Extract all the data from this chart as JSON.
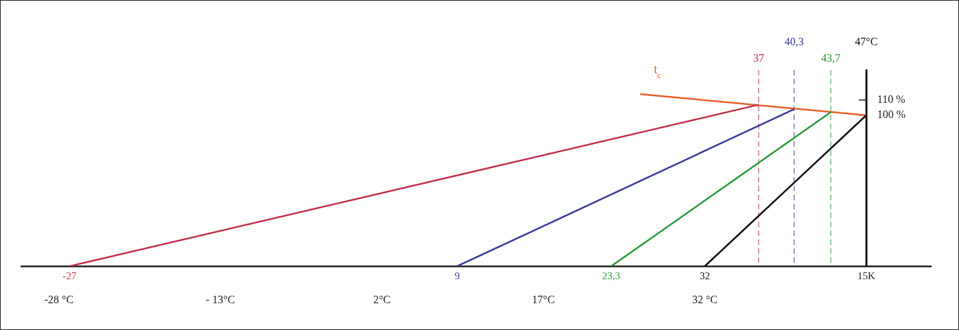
{
  "chart_data": {
    "type": "line",
    "series": [
      {
        "color": "#c0304a",
        "x": [
          -27,
          37
        ],
        "values": [
          0,
          107
        ]
      },
      {
        "color": "#3a3a9a",
        "x": [
          9,
          40.3
        ],
        "values": [
          0,
          104
        ]
      },
      {
        "color": "#2a9a3a",
        "x": [
          23.3,
          43.7
        ],
        "values": [
          0,
          102
        ]
      },
      {
        "color": "#111111",
        "x": [
          32,
          47
        ],
        "values": [
          0,
          100
        ]
      },
      {
        "name": "t$_{c}$",
        "color": "#e8602a",
        "x": [
          26,
          47
        ],
        "values": [
          114,
          100
        ]
      }
    ],
    "xlim": [
      -31.5,
      53
    ],
    "xticks": [
      {
        "value": -28,
        "label": "-28 °C"
      },
      {
        "value": -13,
        "label": "- 13°C"
      },
      {
        "value": 2,
        "label": "2°C"
      },
      {
        "value": 17,
        "label": "17°C"
      },
      {
        "value": 32,
        "label": "32 °C"
      }
    ],
    "ylim": [
      0,
      130
    ],
    "yticks": [
      {
        "value": 100,
        "label": "100 %"
      },
      {
        "value": 110,
        "label": "110 %"
      }
    ],
    "ref_lines": [
      {
        "axis": "x",
        "value": 37,
        "label": "37",
        "color": "#c0304a",
        "line_style": "dashed"
      },
      {
        "axis": "x",
        "value": 40.3,
        "label": "40,3",
        "color": "#3a3a9a",
        "line_style": "dashed"
      },
      {
        "axis": "x",
        "value": 43.7,
        "label": "43,7",
        "color": "#2a9a3a",
        "line_style": "dashed"
      },
      {
        "axis": "x",
        "value": 47,
        "label": "47°C",
        "color": "#111111",
        "line_style": "solid"
      }
    ],
    "annotations": [
      {
        "text": "-27",
        "x": -27,
        "y": 0
      },
      {
        "text": "9",
        "x": 9,
        "y": 0
      },
      {
        "text": "23,3",
        "x": 23.3,
        "y": 0
      },
      {
        "text": "32",
        "x": 32,
        "y": 0
      },
      {
        "text": "15K",
        "x": 47,
        "y": 0
      }
    ],
    "marker": "none",
    "grid": false,
    "legend": false
  }
}
